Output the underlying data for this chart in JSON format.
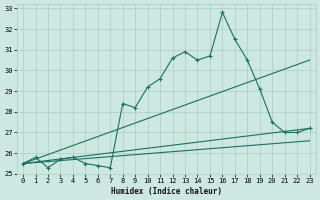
{
  "xlabel": "Humidex (Indice chaleur)",
  "bg_color": "#cce8e0",
  "grid_color": "#aaccc4",
  "line_color": "#1a7060",
  "xlim": [
    -0.5,
    23.5
  ],
  "ylim": [
    25,
    33.2
  ],
  "xticks": [
    0,
    1,
    2,
    3,
    4,
    5,
    6,
    7,
    8,
    9,
    10,
    11,
    12,
    13,
    14,
    15,
    16,
    17,
    18,
    19,
    20,
    21,
    22,
    23
  ],
  "yticks": [
    25,
    26,
    27,
    28,
    29,
    30,
    31,
    32,
    33
  ],
  "series1_x": [
    0,
    1,
    2,
    3,
    4,
    5,
    6,
    7,
    8,
    9,
    10,
    11,
    12,
    13,
    14,
    15,
    16,
    17,
    18,
    19,
    20,
    21,
    22,
    23
  ],
  "series1_y": [
    25.5,
    25.8,
    25.3,
    25.7,
    25.8,
    25.5,
    25.4,
    25.3,
    28.4,
    28.2,
    29.2,
    29.6,
    30.6,
    30.9,
    30.5,
    30.7,
    32.8,
    31.5,
    30.5,
    29.1,
    27.5,
    27.0,
    27.0,
    27.2
  ],
  "line2_x": [
    0,
    23
  ],
  "line2_y": [
    25.5,
    30.5
  ],
  "line3_x": [
    0,
    23
  ],
  "line3_y": [
    25.5,
    27.2
  ],
  "line4_x": [
    0,
    23
  ],
  "line4_y": [
    25.5,
    26.6
  ]
}
